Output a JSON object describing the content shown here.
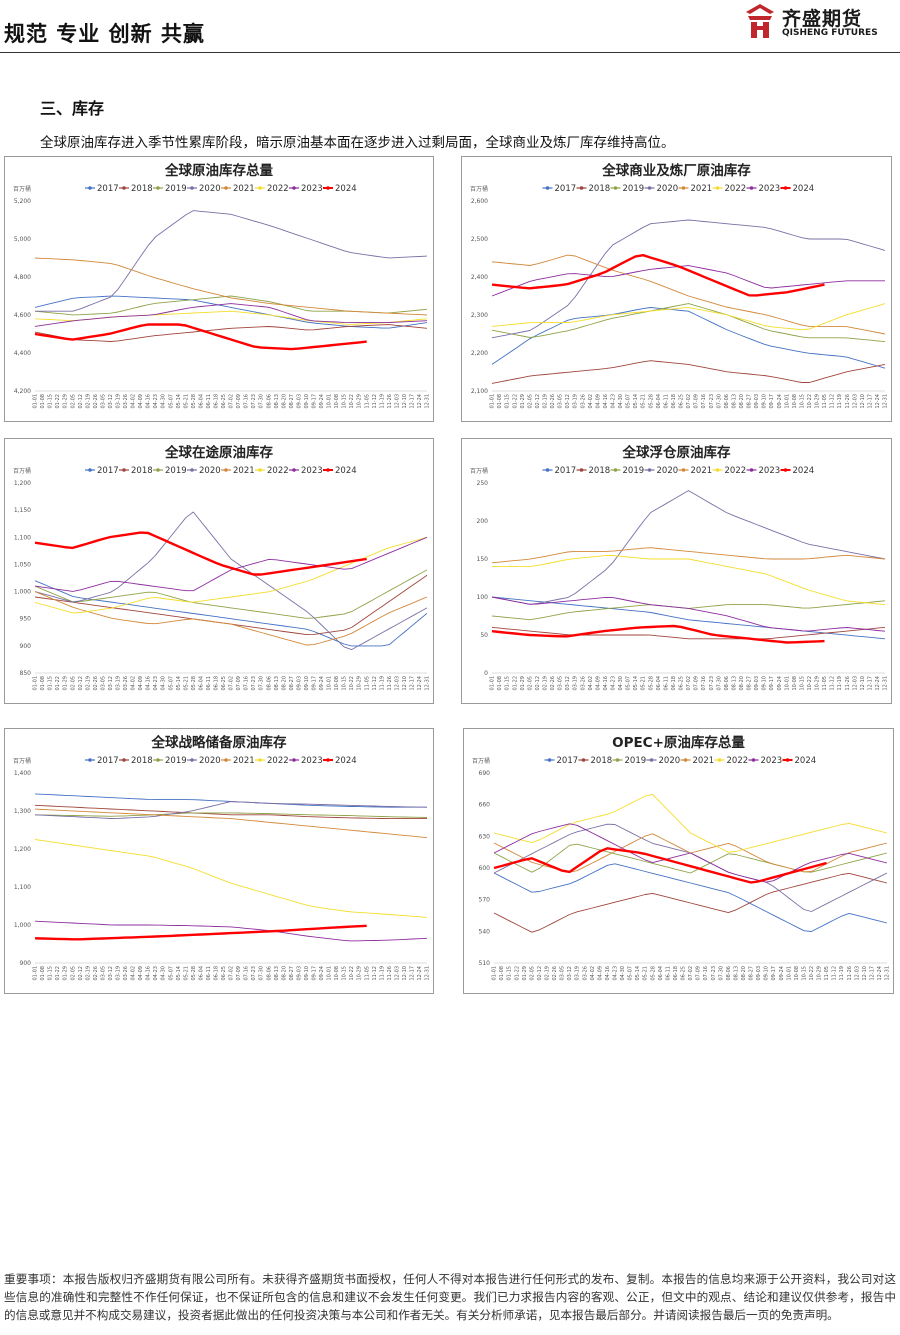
{
  "header": {
    "slogan": "规范 专业 创新 共赢",
    "logo_cn": "齐盛期货",
    "logo_en": "QISHENG FUTURES",
    "logo_icon": "qisheng-emblem-icon",
    "accent": "#c0272d"
  },
  "section_title": "三、库存",
  "intro": "全球原油库存进入季节性累库阶段，暗示原油基本面在逐步进入过剩局面，全球商业及炼厂库存维持高位。",
  "legend_labels": [
    "2017",
    "2018",
    "2019",
    "2020",
    "2021",
    "2022",
    "2023",
    "2024"
  ],
  "series_colors": [
    "#4472c4",
    "#a0453c",
    "#8ea348",
    "#7b6fa6",
    "#d2883a",
    "#f5dd2c",
    "#8e2d9e",
    "#ff0000"
  ],
  "x_ticks": [
    "01-01",
    "01-08",
    "01-15",
    "01-22",
    "01-29",
    "02-05",
    "02-12",
    "02-19",
    "02-26",
    "03-05",
    "03-12",
    "03-19",
    "03-26",
    "04-02",
    "04-09",
    "04-16",
    "04-23",
    "04-30",
    "05-07",
    "05-14",
    "05-21",
    "05-28",
    "06-04",
    "06-11",
    "06-18",
    "06-25",
    "07-02",
    "07-09",
    "07-16",
    "07-23",
    "07-30",
    "08-06",
    "08-13",
    "08-20",
    "08-27",
    "09-03",
    "09-10",
    "09-17",
    "09-24",
    "10-01",
    "10-08",
    "10-15",
    "10-22",
    "10-29",
    "11-05",
    "11-12",
    "11-19",
    "11-26",
    "12-03",
    "12-10",
    "12-17",
    "12-24",
    "12-31"
  ],
  "chart_data": [
    {
      "type": "line",
      "title": "全球原油库存总量",
      "unit": "百万桶",
      "y_ticks": [
        "4,200",
        "4,400",
        "4,600",
        "4,800",
        "5,000",
        "5,200"
      ],
      "ylim": [
        4200,
        5200
      ],
      "series": [
        {
          "name": "2017",
          "anchors": [
            4640,
            4690,
            4700,
            4690,
            4680,
            4640,
            4600,
            4560,
            4540,
            4530,
            4560
          ]
        },
        {
          "name": "2018",
          "anchors": [
            4510,
            4470,
            4460,
            4490,
            4510,
            4530,
            4540,
            4520,
            4540,
            4550,
            4530
          ]
        },
        {
          "name": "2019",
          "anchors": [
            4620,
            4600,
            4610,
            4660,
            4680,
            4700,
            4670,
            4620,
            4620,
            4610,
            4630
          ]
        },
        {
          "name": "2020",
          "anchors": [
            4620,
            4620,
            4700,
            5000,
            5150,
            5130,
            5070,
            5000,
            4930,
            4900,
            4910
          ]
        },
        {
          "name": "2021",
          "anchors": [
            4900,
            4890,
            4870,
            4800,
            4740,
            4690,
            4660,
            4640,
            4620,
            4610,
            4600
          ]
        },
        {
          "name": "2022",
          "anchors": [
            4580,
            4570,
            4590,
            4600,
            4610,
            4620,
            4600,
            4570,
            4550,
            4560,
            4580
          ]
        },
        {
          "name": "2023",
          "anchors": [
            4540,
            4570,
            4590,
            4600,
            4640,
            4660,
            4640,
            4570,
            4560,
            4560,
            4570
          ]
        },
        {
          "name": "2024",
          "anchors": [
            4500,
            4470,
            4500,
            4550,
            4550,
            4490,
            4430,
            4420,
            4440,
            4460
          ]
        }
      ]
    },
    {
      "type": "line",
      "title": "全球商业及炼厂原油库存",
      "unit": "百万桶",
      "y_ticks": [
        "2,100",
        "2,200",
        "2,300",
        "2,400",
        "2,500",
        "2,600"
      ],
      "ylim": [
        2100,
        2600
      ],
      "series": [
        {
          "name": "2017",
          "anchors": [
            2170,
            2240,
            2290,
            2300,
            2320,
            2310,
            2260,
            2220,
            2200,
            2190,
            2160
          ]
        },
        {
          "name": "2018",
          "anchors": [
            2120,
            2140,
            2150,
            2160,
            2180,
            2170,
            2150,
            2140,
            2120,
            2150,
            2170
          ]
        },
        {
          "name": "2019",
          "anchors": [
            2260,
            2240,
            2260,
            2290,
            2310,
            2330,
            2300,
            2260,
            2240,
            2240,
            2230
          ]
        },
        {
          "name": "2020",
          "anchors": [
            2240,
            2260,
            2330,
            2480,
            2540,
            2550,
            2540,
            2530,
            2500,
            2500,
            2470
          ]
        },
        {
          "name": "2021",
          "anchors": [
            2440,
            2430,
            2460,
            2420,
            2390,
            2350,
            2320,
            2300,
            2270,
            2270,
            2250
          ]
        },
        {
          "name": "2022",
          "anchors": [
            2270,
            2280,
            2280,
            2300,
            2310,
            2320,
            2300,
            2270,
            2260,
            2300,
            2330
          ]
        },
        {
          "name": "2023",
          "anchors": [
            2350,
            2390,
            2410,
            2400,
            2420,
            2430,
            2410,
            2370,
            2380,
            2390,
            2390
          ]
        },
        {
          "name": "2024",
          "anchors": [
            2380,
            2370,
            2380,
            2410,
            2460,
            2430,
            2390,
            2350,
            2360,
            2380
          ]
        }
      ]
    },
    {
      "type": "line",
      "title": "全球在途原油库存",
      "unit": "百万桶",
      "y_ticks": [
        "850",
        "900",
        "950",
        "1,000",
        "1,050",
        "1,100",
        "1,150",
        "1,200"
      ],
      "ylim": [
        850,
        1200
      ],
      "series": [
        {
          "name": "2017",
          "anchors": [
            1020,
            990,
            980,
            970,
            960,
            950,
            940,
            930,
            900,
            900,
            960
          ]
        },
        {
          "name": "2018",
          "anchors": [
            990,
            980,
            970,
            960,
            950,
            940,
            930,
            920,
            930,
            980,
            1030
          ]
        },
        {
          "name": "2019",
          "anchors": [
            1010,
            980,
            990,
            1000,
            980,
            970,
            960,
            950,
            960,
            1000,
            1040
          ]
        },
        {
          "name": "2020",
          "anchors": [
            1000,
            980,
            1000,
            1060,
            1150,
            1060,
            1010,
            960,
            890,
            930,
            970
          ]
        },
        {
          "name": "2021",
          "anchors": [
            1000,
            970,
            950,
            940,
            950,
            940,
            920,
            900,
            920,
            960,
            990
          ]
        },
        {
          "name": "2022",
          "anchors": [
            980,
            960,
            970,
            990,
            980,
            990,
            1000,
            1020,
            1050,
            1080,
            1100
          ]
        },
        {
          "name": "2023",
          "anchors": [
            1010,
            1000,
            1020,
            1010,
            1000,
            1040,
            1060,
            1050,
            1040,
            1070,
            1100
          ]
        },
        {
          "name": "2024",
          "anchors": [
            1090,
            1080,
            1100,
            1110,
            1080,
            1050,
            1030,
            1040,
            1050,
            1060
          ]
        }
      ]
    },
    {
      "type": "line",
      "title": "全球浮仓原油库存",
      "unit": "百万桶",
      "y_ticks": [
        "0",
        "50",
        "100",
        "150",
        "200",
        "250"
      ],
      "ylim": [
        0,
        250
      ],
      "series": [
        {
          "name": "2017",
          "anchors": [
            100,
            95,
            90,
            85,
            80,
            70,
            65,
            60,
            55,
            50,
            45
          ]
        },
        {
          "name": "2018",
          "anchors": [
            60,
            55,
            50,
            50,
            50,
            45,
            45,
            45,
            50,
            55,
            60
          ]
        },
        {
          "name": "2019",
          "anchors": [
            75,
            70,
            80,
            85,
            90,
            85,
            90,
            90,
            85,
            90,
            95
          ]
        },
        {
          "name": "2020",
          "anchors": [
            100,
            90,
            100,
            140,
            210,
            240,
            210,
            190,
            170,
            160,
            150
          ]
        },
        {
          "name": "2021",
          "anchors": [
            145,
            150,
            160,
            160,
            165,
            160,
            155,
            150,
            150,
            155,
            150
          ]
        },
        {
          "name": "2022",
          "anchors": [
            140,
            140,
            150,
            155,
            150,
            150,
            140,
            130,
            110,
            95,
            90
          ]
        },
        {
          "name": "2023",
          "anchors": [
            100,
            90,
            95,
            100,
            90,
            85,
            75,
            60,
            55,
            60,
            55
          ]
        },
        {
          "name": "2024",
          "anchors": [
            55,
            50,
            48,
            55,
            60,
            62,
            50,
            45,
            40,
            42
          ]
        }
      ]
    },
    {
      "type": "line",
      "title": "全球战略储备原油库存",
      "unit": "百万桶",
      "y_ticks": [
        "900",
        "1,000",
        "1,100",
        "1,200",
        "1,300",
        "1,400"
      ],
      "ylim": [
        900,
        1400
      ],
      "series": [
        {
          "name": "2017",
          "anchors": [
            1345,
            1340,
            1335,
            1330,
            1330,
            1325,
            1320,
            1315,
            1312,
            1310,
            1310
          ]
        },
        {
          "name": "2018",
          "anchors": [
            1315,
            1310,
            1305,
            1300,
            1295,
            1290,
            1290,
            1285,
            1282,
            1280,
            1280
          ]
        },
        {
          "name": "2019",
          "anchors": [
            1290,
            1288,
            1286,
            1290,
            1295,
            1295,
            1293,
            1290,
            1288,
            1285,
            1283
          ]
        },
        {
          "name": "2020",
          "anchors": [
            1290,
            1285,
            1280,
            1285,
            1300,
            1325,
            1320,
            1318,
            1315,
            1312,
            1310
          ]
        },
        {
          "name": "2021",
          "anchors": [
            1305,
            1300,
            1295,
            1290,
            1285,
            1280,
            1270,
            1260,
            1250,
            1240,
            1230
          ]
        },
        {
          "name": "2022",
          "anchors": [
            1225,
            1210,
            1195,
            1180,
            1150,
            1110,
            1080,
            1050,
            1035,
            1028,
            1020
          ]
        },
        {
          "name": "2023",
          "anchors": [
            1010,
            1005,
            1000,
            1000,
            998,
            995,
            985,
            970,
            958,
            960,
            965
          ]
        },
        {
          "name": "2024",
          "anchors": [
            965,
            962,
            966,
            970,
            975,
            980,
            985,
            992,
            998
          ]
        }
      ]
    },
    {
      "type": "line",
      "title": "OPEC+原油库存总量",
      "unit": "百万桶",
      "y_ticks": [
        "510",
        "540",
        "570",
        "600",
        "630",
        "660",
        "690"
      ],
      "ylim": [
        510,
        700
      ],
      "series": [
        {
          "name": "2017",
          "anchors": [
            600,
            580,
            590,
            610,
            600,
            590,
            580,
            560,
            540,
            560,
            550
          ]
        },
        {
          "name": "2018",
          "anchors": [
            560,
            540,
            560,
            570,
            580,
            570,
            560,
            580,
            590,
            600,
            590
          ]
        },
        {
          "name": "2019",
          "anchors": [
            620,
            600,
            630,
            620,
            610,
            600,
            620,
            610,
            600,
            610,
            620
          ]
        },
        {
          "name": "2020",
          "anchors": [
            600,
            620,
            640,
            650,
            630,
            620,
            600,
            590,
            560,
            580,
            600
          ]
        },
        {
          "name": "2021",
          "anchors": [
            630,
            610,
            600,
            620,
            640,
            620,
            630,
            610,
            600,
            620,
            630
          ]
        },
        {
          "name": "2022",
          "anchors": [
            640,
            630,
            650,
            660,
            680,
            640,
            620,
            630,
            640,
            650,
            640
          ]
        },
        {
          "name": "2023",
          "anchors": [
            620,
            640,
            650,
            630,
            610,
            620,
            600,
            590,
            610,
            620,
            610
          ]
        },
        {
          "name": "2024",
          "anchors": [
            605,
            615,
            600,
            625,
            620,
            610,
            600,
            590,
            600,
            610
          ]
        }
      ]
    }
  ],
  "disclaimer": "重要事项：本报告版权归齐盛期货有限公司所有。未获得齐盛期货书面授权，任何人不得对本报告进行任何形式的发布、复制。本报告的信息均来源于公开资料，我公司对这些信息的准确性和完整性不作任何保证，也不保证所包含的信息和建议不会发生任何变更。我们已力求报告内容的客观、公正，但文中的观点、结论和建议仅供参考，报告中的信息或意见并不构成交易建议，投资者据此做出的任何投资决策与本公司和作者无关。有关分析师承诺，见本报告最后部分。并请阅读报告最后一页的免责声明。"
}
